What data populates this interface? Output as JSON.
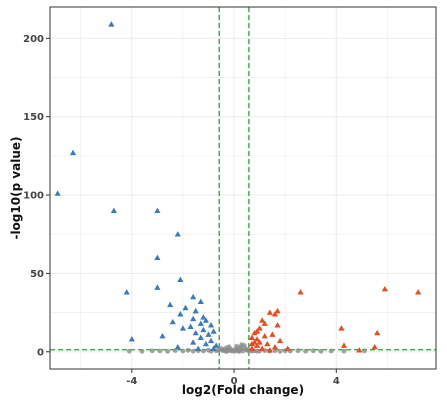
{
  "chart_data": {
    "type": "scatter",
    "title": "",
    "xlabel": "log2(Fold change)",
    "ylabel": "-log10(p value)",
    "xlim": [
      -7.2,
      7.9
    ],
    "ylim": [
      -11,
      220
    ],
    "x_ticks": [
      -4,
      0,
      4
    ],
    "y_ticks": [
      0,
      50,
      100,
      150,
      200
    ],
    "x_tick_labels": [
      "-4",
      "0",
      "4"
    ],
    "y_tick_labels": [
      "0",
      "50",
      "100",
      "150",
      "200"
    ],
    "grid": true,
    "legend": "none",
    "thresholds": {
      "fold_change": [
        -0.58,
        0.58
      ],
      "p_value_line": 1.3
    },
    "colors": {
      "down": "#3a7bbf",
      "up": "#ef4a1c",
      "not_significant": "#8c8c8c",
      "threshold_line": "#2ca02c",
      "panel_border": "#333333",
      "gridline": "#ebebeb"
    },
    "series": [
      {
        "group": "down",
        "marker": "triangle",
        "points": [
          [
            -4.8,
            209
          ],
          [
            -6.3,
            127
          ],
          [
            -6.9,
            101
          ],
          [
            -3.0,
            90
          ],
          [
            -4.7,
            90
          ],
          [
            -2.2,
            75
          ],
          [
            -3.0,
            60
          ],
          [
            -2.1,
            46
          ],
          [
            -3.0,
            41
          ],
          [
            -4.2,
            38
          ],
          [
            -1.6,
            35
          ],
          [
            -1.3,
            32
          ],
          [
            -2.5,
            30
          ],
          [
            -1.9,
            28
          ],
          [
            -1.5,
            26
          ],
          [
            -2.1,
            24
          ],
          [
            -1.2,
            22
          ],
          [
            -1.6,
            21
          ],
          [
            -1.1,
            20
          ],
          [
            -2.4,
            19
          ],
          [
            -1.3,
            18
          ],
          [
            -0.9,
            17
          ],
          [
            -1.7,
            16
          ],
          [
            -2.0,
            15
          ],
          [
            -1.2,
            14
          ],
          [
            -0.8,
            13
          ],
          [
            -1.5,
            12
          ],
          [
            -1.0,
            11
          ],
          [
            -2.8,
            10
          ],
          [
            -1.3,
            9
          ],
          [
            -4.0,
            8
          ],
          [
            -0.9,
            7
          ],
          [
            -1.6,
            6
          ],
          [
            -1.1,
            5
          ],
          [
            -0.7,
            4
          ],
          [
            -2.2,
            3
          ],
          [
            -1.4,
            2
          ],
          [
            -0.8,
            2
          ]
        ]
      },
      {
        "group": "up",
        "marker": "triangle",
        "points": [
          [
            5.9,
            40
          ],
          [
            7.2,
            38
          ],
          [
            2.6,
            38
          ],
          [
            1.7,
            26
          ],
          [
            1.4,
            25
          ],
          [
            1.6,
            24
          ],
          [
            1.1,
            20
          ],
          [
            1.2,
            18
          ],
          [
            1.7,
            17
          ],
          [
            4.2,
            15
          ],
          [
            1.0,
            15
          ],
          [
            0.9,
            13
          ],
          [
            5.6,
            12
          ],
          [
            0.8,
            12
          ],
          [
            1.5,
            11
          ],
          [
            1.2,
            10
          ],
          [
            0.7,
            9
          ],
          [
            0.9,
            8
          ],
          [
            1.8,
            7
          ],
          [
            0.8,
            6
          ],
          [
            1.0,
            6
          ],
          [
            1.3,
            5
          ],
          [
            0.7,
            5
          ],
          [
            4.3,
            4
          ],
          [
            0.9,
            4
          ],
          [
            1.6,
            3
          ],
          [
            5.5,
            3
          ],
          [
            2.1,
            2
          ],
          [
            1.1,
            2
          ],
          [
            0.7,
            2
          ],
          [
            4.9,
            1
          ],
          [
            1.4,
            1
          ]
        ]
      },
      {
        "group": "not_significant",
        "marker": "circle",
        "points": [
          [
            -4.1,
            0.4
          ],
          [
            -3.6,
            0.3
          ],
          [
            -3.2,
            0.6
          ],
          [
            -2.9,
            0.5
          ],
          [
            -2.6,
            0.3
          ],
          [
            -2.3,
            0.8
          ],
          [
            -2.0,
            0.5
          ],
          [
            -1.8,
            0.9
          ],
          [
            -1.6,
            0.4
          ],
          [
            -1.4,
            0.7
          ],
          [
            -1.2,
            0.5
          ],
          [
            -1.0,
            1.0
          ],
          [
            -0.9,
            0.3
          ],
          [
            -0.7,
            0.6
          ],
          [
            -0.6,
            1.1
          ],
          [
            -0.5,
            2.0
          ],
          [
            -0.45,
            0.8
          ],
          [
            -0.4,
            1.5
          ],
          [
            -0.35,
            0.4
          ],
          [
            -0.3,
            2.5
          ],
          [
            -0.25,
            1.2
          ],
          [
            -0.2,
            0.7
          ],
          [
            -0.15,
            1.8
          ],
          [
            -0.1,
            0.5
          ],
          [
            -0.05,
            1.0
          ],
          [
            0.0,
            0.3
          ],
          [
            0.05,
            1.4
          ],
          [
            0.1,
            0.6
          ],
          [
            0.15,
            2.2
          ],
          [
            0.2,
            0.9
          ],
          [
            0.25,
            3.0
          ],
          [
            0.3,
            1.6
          ],
          [
            0.35,
            0.5
          ],
          [
            0.4,
            4.0
          ],
          [
            0.45,
            2.1
          ],
          [
            0.5,
            1.2
          ],
          [
            0.55,
            0.7
          ],
          [
            0.6,
            0.9
          ],
          [
            0.7,
            0.4
          ],
          [
            0.8,
            0.6
          ],
          [
            0.9,
            0.3
          ],
          [
            1.0,
            0.5
          ],
          [
            1.2,
            0.8
          ],
          [
            1.4,
            0.4
          ],
          [
            1.6,
            0.7
          ],
          [
            1.8,
            0.3
          ],
          [
            2.0,
            0.6
          ],
          [
            2.2,
            0.5
          ],
          [
            2.5,
            0.7
          ],
          [
            2.8,
            0.4
          ],
          [
            3.1,
            0.6
          ],
          [
            3.4,
            0.3
          ],
          [
            3.8,
            0.5
          ],
          [
            4.3,
            0.4
          ],
          [
            5.1,
            0.6
          ],
          [
            -0.3,
            0.2
          ],
          [
            0.2,
            0.2
          ],
          [
            0.1,
            3.5
          ],
          [
            -0.2,
            3.2
          ],
          [
            0.3,
            4.5
          ]
        ]
      }
    ]
  }
}
